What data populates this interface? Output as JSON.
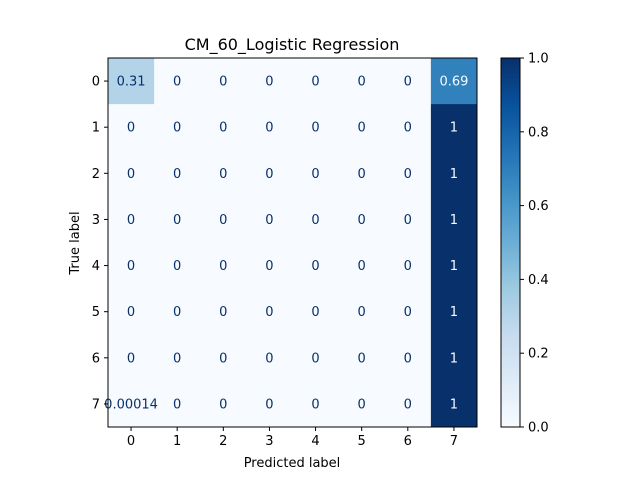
{
  "chart_data": {
    "type": "heatmap",
    "title": "CM_60_Logistic Regression",
    "xlabel": "Predicted label",
    "ylabel": "True label",
    "x_categories": [
      "0",
      "1",
      "2",
      "3",
      "4",
      "5",
      "6",
      "7"
    ],
    "y_categories": [
      "0",
      "1",
      "2",
      "3",
      "4",
      "5",
      "6",
      "7"
    ],
    "values": [
      [
        0.31,
        0,
        0,
        0,
        0,
        0,
        0,
        0.69
      ],
      [
        0,
        0,
        0,
        0,
        0,
        0,
        0,
        1
      ],
      [
        0,
        0,
        0,
        0,
        0,
        0,
        0,
        1
      ],
      [
        0,
        0,
        0,
        0,
        0,
        0,
        0,
        1
      ],
      [
        0,
        0,
        0,
        0,
        0,
        0,
        0,
        1
      ],
      [
        0,
        0,
        0,
        0,
        0,
        0,
        0,
        1
      ],
      [
        0,
        0,
        0,
        0,
        0,
        0,
        0,
        1
      ],
      [
        0.00014,
        0,
        0,
        0,
        0,
        0,
        0,
        1
      ]
    ],
    "cell_labels": [
      [
        "0.31",
        "0",
        "0",
        "0",
        "0",
        "0",
        "0",
        "0.69"
      ],
      [
        "0",
        "0",
        "0",
        "0",
        "0",
        "0",
        "0",
        "1"
      ],
      [
        "0",
        "0",
        "0",
        "0",
        "0",
        "0",
        "0",
        "1"
      ],
      [
        "0",
        "0",
        "0",
        "0",
        "0",
        "0",
        "0",
        "1"
      ],
      [
        "0",
        "0",
        "0",
        "0",
        "0",
        "0",
        "0",
        "1"
      ],
      [
        "0",
        "0",
        "0",
        "0",
        "0",
        "0",
        "0",
        "1"
      ],
      [
        "0",
        "0",
        "0",
        "0",
        "0",
        "0",
        "0",
        "1"
      ],
      [
        "0.00014",
        "0",
        "0",
        "0",
        "0",
        "0",
        "0",
        "1"
      ]
    ],
    "colorbar": {
      "range": [
        0.0,
        1.0
      ],
      "ticks": [
        "0.0",
        "0.2",
        "0.4",
        "0.6",
        "0.8",
        "1.0"
      ],
      "colormap": "Blues"
    },
    "colors": {
      "low": "#f7fbff",
      "high": "#08306b",
      "text_dark": "#08306b",
      "text_light": "#f7fbff"
    }
  }
}
